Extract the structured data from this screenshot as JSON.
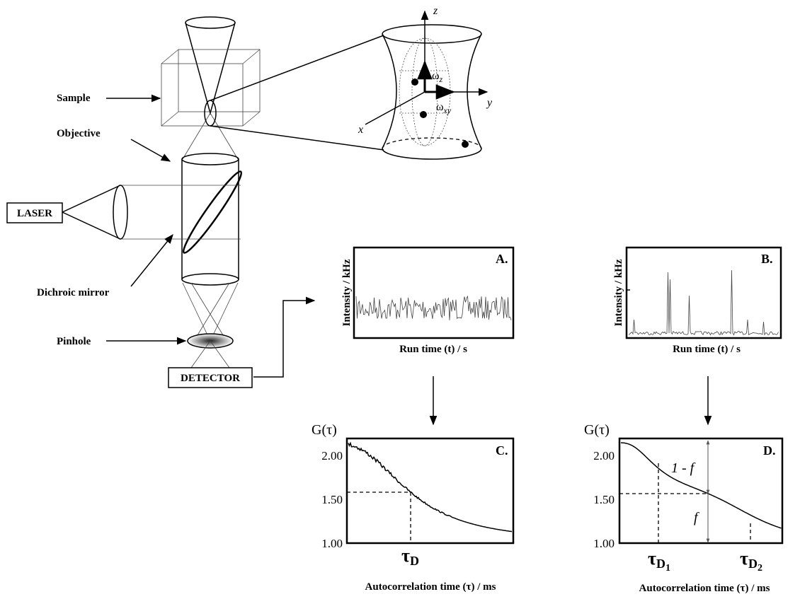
{
  "setup": {
    "sample": "Sample",
    "objective": "Objective",
    "laser": "LASER",
    "dichroic_mirror": "Dichroic mirror",
    "pinhole": "Pinhole",
    "detector": "DETECTOR"
  },
  "focal_volume": {
    "axis_z": "z",
    "axis_y": "y",
    "axis_x": "x",
    "radius_z": {
      "symbol": "ω",
      "subscript": "z"
    },
    "radius_xy": {
      "symbol": "ω",
      "subscript": "xy"
    }
  },
  "panels": [
    {
      "tag": "A.",
      "y_label": "Intensity / kHz",
      "x_label": "Run time (t) / s"
    },
    {
      "tag": "B.",
      "y_label": "Intensity / kHz",
      "x_label": "Run time (t) / s"
    },
    {
      "tag": "C.",
      "y_label": "G(τ)",
      "yticks": [
        "2.00",
        "1.50",
        "1.00"
      ],
      "x_label": "Autocorrelation time (τ) / ms",
      "markers": [
        {
          "symbol": "τ",
          "subscript": "D"
        }
      ]
    },
    {
      "tag": "D.",
      "y_label": "G(τ)",
      "yticks": [
        "2.00",
        "1.50",
        "1.00"
      ],
      "x_label": "Autocorrelation time (τ) / ms",
      "markers": [
        {
          "symbol": "τ",
          "subscript": "D",
          "index": "1"
        },
        {
          "symbol": "τ",
          "subscript": "D",
          "index": "2"
        }
      ],
      "annotations": [
        "1 - f",
        "f"
      ]
    }
  ]
}
